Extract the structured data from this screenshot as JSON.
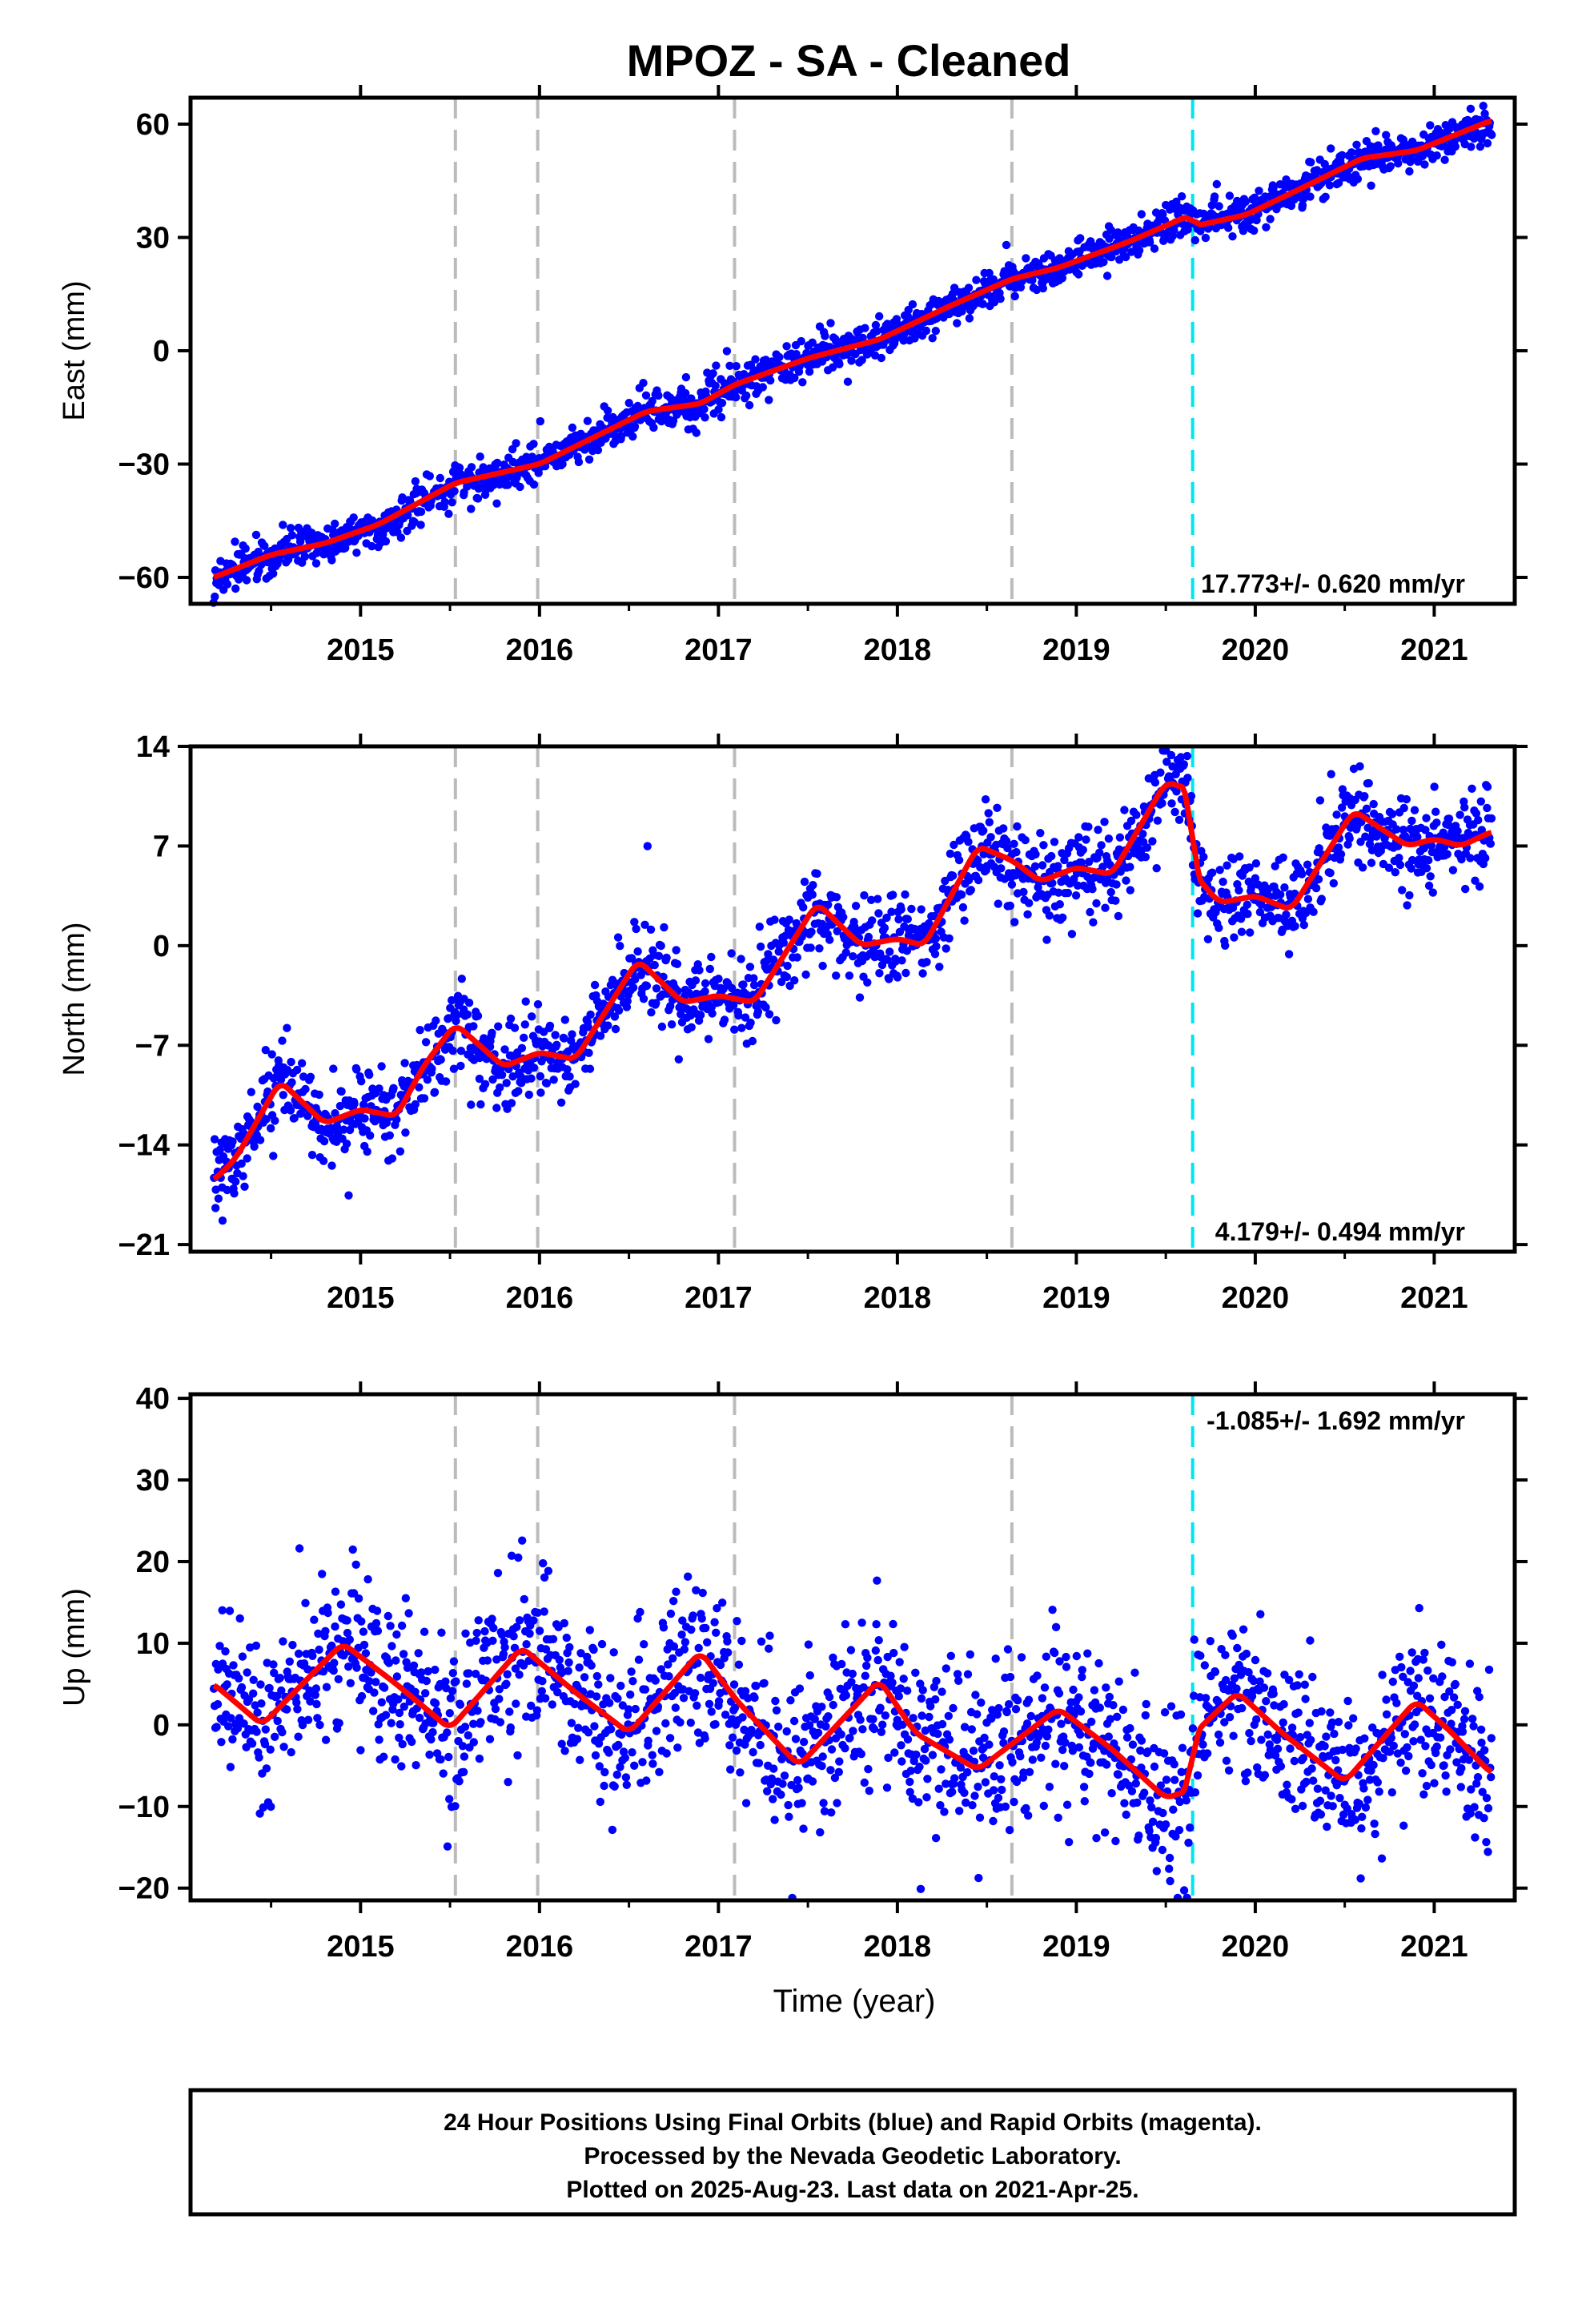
{
  "title": "MPOZ  - SA - Cleaned",
  "colors": {
    "points": "#0000ff",
    "fit": "#ff0000",
    "event_gray": "#bbbbbb",
    "event_cyan": "#00e5ee"
  },
  "chart_data": [
    {
      "type": "scatter",
      "panel": "east",
      "ylabel": "East (mm)",
      "rate_label": "17.773+/- 0.620 mm/yr",
      "xlim": [
        2014.05,
        2021.45
      ],
      "ylim": [
        -67,
        67
      ],
      "yticks": [
        -60,
        -30,
        0,
        30,
        60
      ],
      "xticks": [
        2015,
        2016,
        2017,
        2018,
        2019,
        2020,
        2021
      ],
      "tick_labels": [
        "2015",
        "2016",
        "2017",
        "2018",
        "2019",
        "2020",
        "2021"
      ],
      "ytick_labels": [
        "−60",
        "−30",
        "0",
        "30",
        "60"
      ],
      "events_gray": [
        2015.53,
        2015.99,
        2017.09,
        2018.64
      ],
      "events_cyan": [
        2019.65
      ],
      "fit": [
        [
          2014.18,
          -60
        ],
        [
          2014.5,
          -54
        ],
        [
          2014.8,
          -51
        ],
        [
          2015.1,
          -46
        ],
        [
          2015.53,
          -35
        ],
        [
          2016.0,
          -30
        ],
        [
          2016.3,
          -23
        ],
        [
          2016.6,
          -16
        ],
        [
          2016.9,
          -14
        ],
        [
          2017.09,
          -9
        ],
        [
          2017.5,
          -2
        ],
        [
          2017.9,
          3
        ],
        [
          2018.3,
          12
        ],
        [
          2018.64,
          19
        ],
        [
          2018.9,
          22
        ],
        [
          2019.3,
          29
        ],
        [
          2019.64,
          36
        ],
        [
          2019.66,
          33
        ],
        [
          2019.95,
          36
        ],
        [
          2020.3,
          44
        ],
        [
          2020.6,
          51
        ],
        [
          2020.9,
          53
        ],
        [
          2021.32,
          61
        ]
      ],
      "noise": 2.5,
      "x_range": [
        2014.18,
        2021.32
      ]
    },
    {
      "type": "scatter",
      "panel": "north",
      "ylabel": "North (mm)",
      "rate_label": "4.179+/- 0.494 mm/yr",
      "xlim": [
        2014.05,
        2021.45
      ],
      "ylim": [
        -21.5,
        14
      ],
      "yticks": [
        -21,
        -14,
        -7,
        0,
        7,
        14
      ],
      "xticks": [
        2015,
        2016,
        2017,
        2018,
        2019,
        2020,
        2021
      ],
      "tick_labels": [
        "2015",
        "2016",
        "2017",
        "2018",
        "2019",
        "2020",
        "2021"
      ],
      "ytick_labels": [
        "−21",
        "−14",
        "−7",
        "0",
        "7",
        "14"
      ],
      "events_gray": [
        2015.53,
        2015.99,
        2017.09,
        2018.64
      ],
      "events_cyan": [
        2019.65
      ],
      "fit": [
        [
          2014.18,
          -16.5
        ],
        [
          2014.3,
          -15
        ],
        [
          2014.55,
          -9.5
        ],
        [
          2014.8,
          -12.5
        ],
        [
          2015.0,
          -11.5
        ],
        [
          2015.2,
          -12
        ],
        [
          2015.35,
          -8.5
        ],
        [
          2015.53,
          -5.5
        ],
        [
          2015.8,
          -8.5
        ],
        [
          2016.0,
          -7.5
        ],
        [
          2016.2,
          -8
        ],
        [
          2016.55,
          -1
        ],
        [
          2016.8,
          -4
        ],
        [
          2017.0,
          -3.5
        ],
        [
          2017.2,
          -4
        ],
        [
          2017.55,
          3
        ],
        [
          2017.8,
          0
        ],
        [
          2018.0,
          0.5
        ],
        [
          2018.15,
          0
        ],
        [
          2018.45,
          7
        ],
        [
          2018.64,
          6
        ],
        [
          2018.8,
          4.5
        ],
        [
          2019.0,
          5.5
        ],
        [
          2019.2,
          5
        ],
        [
          2019.5,
          11.5
        ],
        [
          2019.63,
          11
        ],
        [
          2019.66,
          5
        ],
        [
          2019.8,
          3
        ],
        [
          2020.0,
          3.5
        ],
        [
          2020.2,
          2.5
        ],
        [
          2020.55,
          9.5
        ],
        [
          2020.85,
          7
        ],
        [
          2021.0,
          7.5
        ],
        [
          2021.15,
          7
        ],
        [
          2021.32,
          8
        ]
      ],
      "noise": 1.5,
      "x_range": [
        2014.18,
        2021.32
      ]
    },
    {
      "type": "scatter",
      "panel": "up",
      "ylabel": "Up (mm)",
      "xlabel": "Time (year)",
      "rate_label": "-1.085+/- 1.692 mm/yr",
      "xlim": [
        2014.05,
        2021.45
      ],
      "ylim": [
        -21.5,
        40.5
      ],
      "yticks": [
        -20,
        -10,
        0,
        10,
        20,
        30,
        40
      ],
      "xticks": [
        2015,
        2016,
        2017,
        2018,
        2019,
        2020,
        2021
      ],
      "tick_labels": [
        "2015",
        "2016",
        "2017",
        "2018",
        "2019",
        "2020",
        "2021"
      ],
      "ytick_labels": [
        "−20",
        "−10",
        "0",
        "10",
        "20",
        "30",
        "40"
      ],
      "events_gray": [
        2015.53,
        2015.99,
        2017.09,
        2018.64
      ],
      "events_cyan": [
        2019.65
      ],
      "fit": [
        [
          2014.18,
          5
        ],
        [
          2014.45,
          0
        ],
        [
          2014.9,
          10
        ],
        [
          2015.2,
          5
        ],
        [
          2015.5,
          -0.5
        ],
        [
          2015.9,
          9.5
        ],
        [
          2016.2,
          4
        ],
        [
          2016.5,
          -1
        ],
        [
          2016.9,
          9
        ],
        [
          2017.1,
          3
        ],
        [
          2017.45,
          -5
        ],
        [
          2017.9,
          5.5
        ],
        [
          2018.1,
          -1
        ],
        [
          2018.45,
          -5.5
        ],
        [
          2018.9,
          2
        ],
        [
          2019.2,
          -3
        ],
        [
          2019.5,
          -9
        ],
        [
          2019.63,
          -8
        ],
        [
          2019.66,
          -1
        ],
        [
          2019.9,
          4
        ],
        [
          2020.15,
          -1
        ],
        [
          2020.5,
          -7
        ],
        [
          2020.9,
          3
        ],
        [
          2021.1,
          -1
        ],
        [
          2021.32,
          -6
        ]
      ],
      "noise": 5,
      "x_range": [
        2014.18,
        2021.32
      ]
    }
  ],
  "footer": {
    "line1": "24 Hour Positions Using Final Orbits (blue) and Rapid Orbits (magenta).",
    "line2": "Processed by the Nevada Geodetic Laboratory.",
    "line3": "Plotted on 2025-Aug-23. Last data on 2021-Apr-25."
  }
}
